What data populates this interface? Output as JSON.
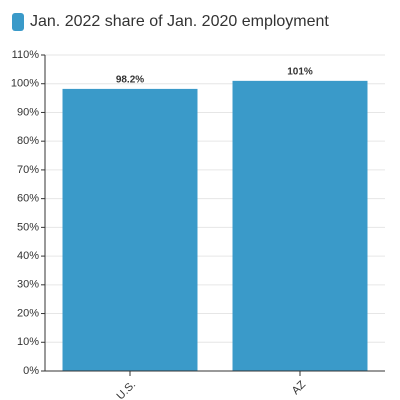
{
  "chart_data": {
    "type": "bar",
    "categories": [
      "U.S.",
      "AZ"
    ],
    "series": [
      {
        "name": "Jan. 2022 share of Jan. 2020 employment",
        "color": "#3a9ac9",
        "values": [
          98.2,
          101
        ],
        "value_labels": [
          "98.2%",
          "101%"
        ]
      }
    ],
    "ylim": [
      0,
      110
    ],
    "yticks": [
      {
        "value": 0,
        "label": "0%"
      },
      {
        "value": 10,
        "label": "10%"
      },
      {
        "value": 20,
        "label": "20%"
      },
      {
        "value": 30,
        "label": "30%"
      },
      {
        "value": 40,
        "label": "40%"
      },
      {
        "value": 50,
        "label": "50%"
      },
      {
        "value": 60,
        "label": "60%"
      },
      {
        "value": 70,
        "label": "70%"
      },
      {
        "value": 80,
        "label": "80%"
      },
      {
        "value": 90,
        "label": "90%"
      },
      {
        "value": 100,
        "label": "100%"
      },
      {
        "value": 110,
        "label": "110%"
      }
    ],
    "grid": true,
    "legend": "top-left"
  }
}
